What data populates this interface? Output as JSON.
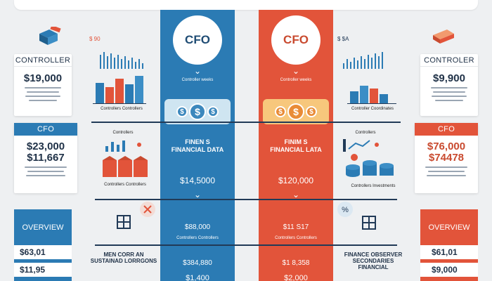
{
  "center_blue": {
    "badge": "CFO",
    "chevron": "⌄",
    "tagline": "Controller weeks",
    "heading": "FINEN S FINANCIAL DATA",
    "value": "$14,5000",
    "bottom_value": "$88,000",
    "bottom_caption": "Controllers Controllers",
    "bottom_value_2": "$384,880",
    "bottom_value_3": "$1,400"
  },
  "center_red": {
    "badge": "CFO",
    "chevron": "⌄",
    "tagline": "Controller weeks",
    "heading": "FINIM S FINANCIAL LATA",
    "value": "$120,000",
    "bottom_value": "$11 S17",
    "bottom_caption": "Controllers Controllers",
    "bottom_value_2": "$1 8,358",
    "bottom_value_3": "$2,000"
  },
  "left_top_card": {
    "header": "CONTROLLER",
    "amount": "$19,000"
  },
  "right_top_card": {
    "header": "CONTROLER",
    "amount": "$9,900"
  },
  "left_mid_card": {
    "header": "CFO",
    "amount_1": "$23,000",
    "amount_2": "$11,667"
  },
  "right_mid_card": {
    "header": "CFO",
    "amount_1": "$76,000",
    "amount_2": "$74478"
  },
  "left_chart_caption": "Controllers Controllers",
  "right_chart_caption": "Controller Coordinates",
  "left_mid_caption": "Controllers Controllers",
  "right_mid_caption": "Controllers Investments",
  "left_mid_label": "Controllers",
  "right_mid_label": "Controllers",
  "left_top_small": "$ 90",
  "right_top_small": "$ $A",
  "left_bottom": {
    "header": "OVERVIEW",
    "v1": "$63,01",
    "v2": "$11,95"
  },
  "right_bottom": {
    "header": "OVERVIEW",
    "v1": "$61,01",
    "v2": "$9,000"
  },
  "left_mid_text": {
    "line1": "MEN CORR AN",
    "line2": "SUSTAINAD LORRGONS"
  },
  "right_mid_text": {
    "line1": "FINANCE OBSERVER",
    "line2": "SECONDARIES FINANCIAL"
  },
  "colors": {
    "blue": "#2b7bb4",
    "red": "#e2543a",
    "navy": "#213a57",
    "background": "#eef0f2"
  }
}
